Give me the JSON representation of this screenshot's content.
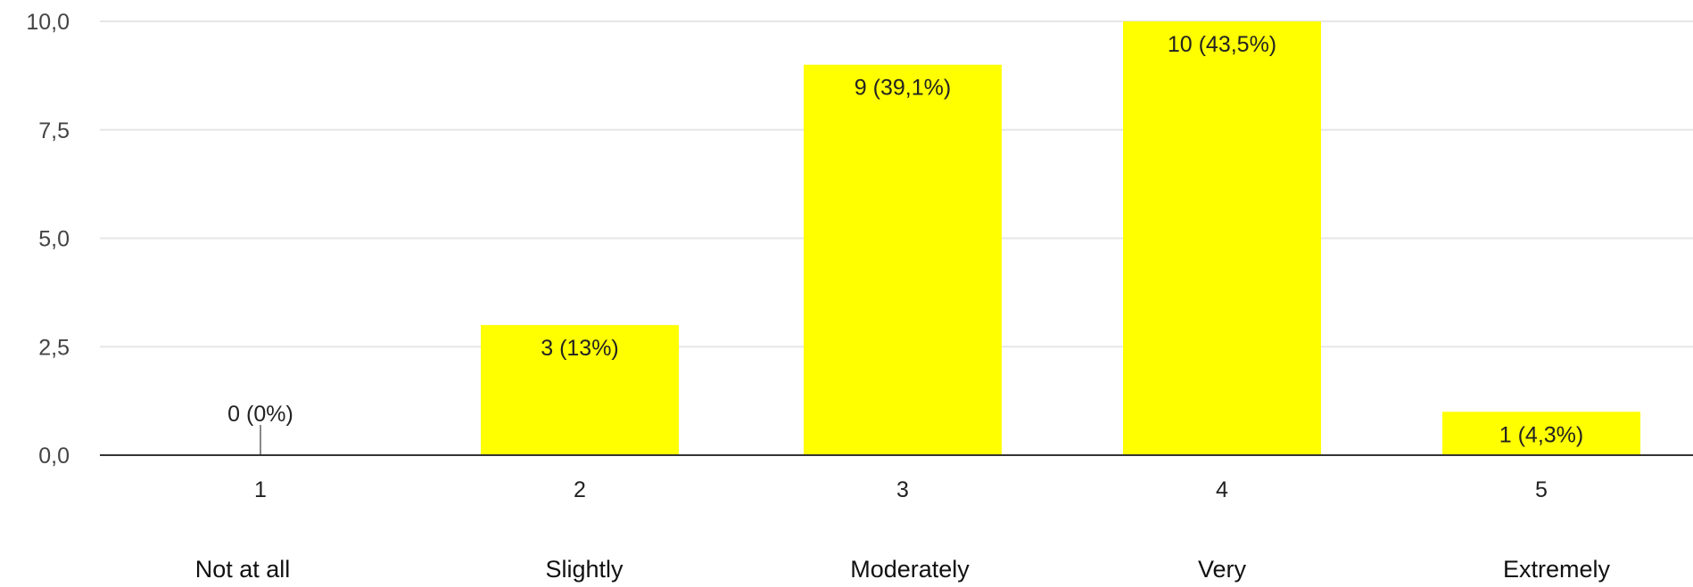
{
  "chart_data": {
    "type": "bar",
    "categories": [
      "1",
      "2",
      "3",
      "4",
      "5"
    ],
    "values": [
      0,
      3,
      9,
      10,
      1
    ],
    "data_labels": [
      "0 (0%)",
      "3 (13%)",
      "9 (39,1%)",
      "10 (43,5%)",
      "1 (4,3%)"
    ],
    "category_captions": [
      "Not at all",
      "Slightly",
      "Moderately",
      "Very",
      "Extremely"
    ],
    "ylim": [
      0,
      10
    ],
    "yticks": [
      0,
      2.5,
      5,
      7.5,
      10
    ],
    "ytick_labels": [
      "0,0",
      "2,5",
      "5,0",
      "7,5",
      "10,0"
    ],
    "grid": true,
    "legend": "none",
    "colors": {
      "bar": "#ffff00",
      "grid": "#e6e6e6",
      "axis": "#333333"
    }
  }
}
